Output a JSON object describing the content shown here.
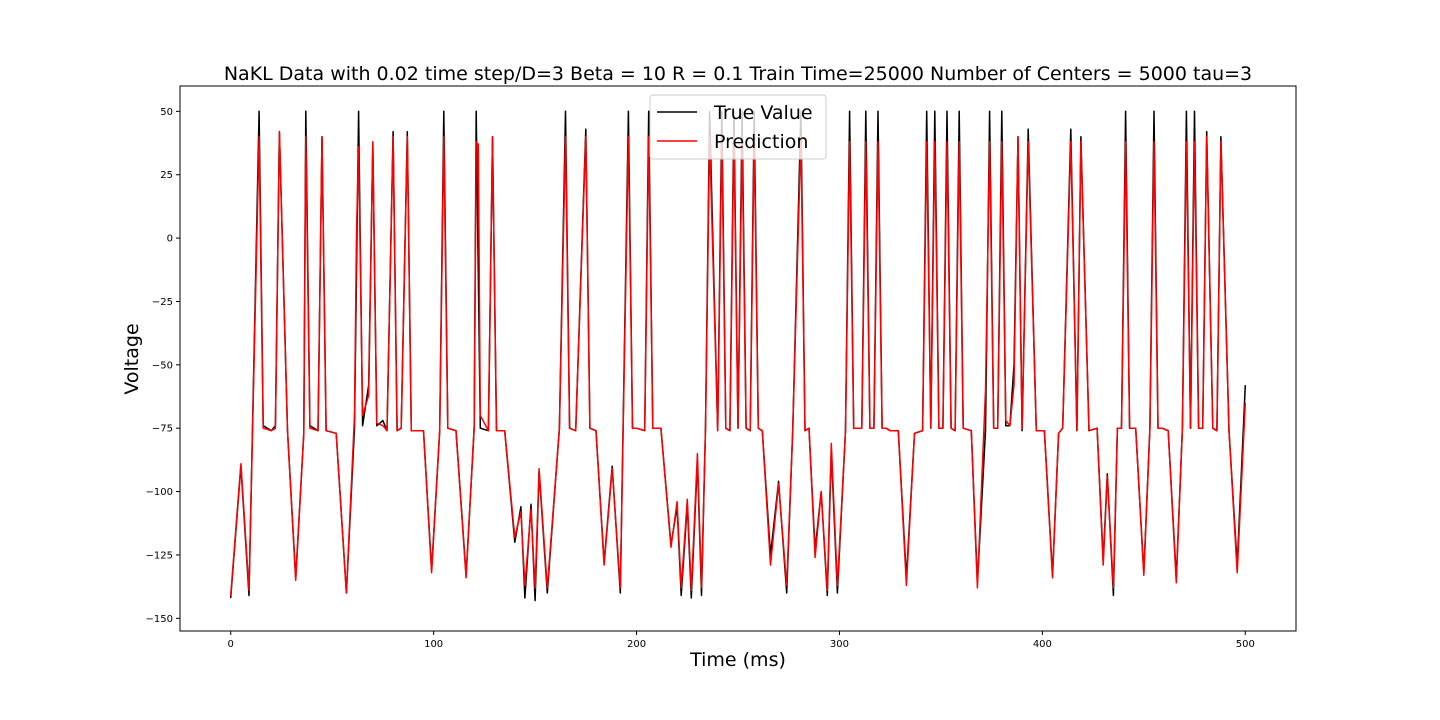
{
  "chart_data": {
    "type": "line",
    "title": "NaKL Data with 0.02 time step/D=3 Beta = 10 R = 0.1 Train Time=25000 Number of Centers = 5000 tau=3",
    "xlabel": "Time (ms)",
    "ylabel": "Voltage",
    "xlim": [
      -25,
      525
    ],
    "ylim": [
      -155,
      60
    ],
    "xticks": [
      0,
      100,
      200,
      300,
      400,
      500
    ],
    "yticks": [
      50,
      25,
      0,
      -25,
      -50,
      -75,
      -100,
      -125,
      -150
    ],
    "xtick_labels": [
      "0",
      "100",
      "200",
      "300",
      "400",
      "500"
    ],
    "ytick_labels": [
      "50",
      "25",
      "0",
      "−25",
      "−50",
      "−75",
      "−100",
      "−125",
      "−150"
    ],
    "grid": false,
    "legend_position": "top-center",
    "series": [
      {
        "name": "True Value",
        "color": "#000000",
        "x": [
          0,
          5,
          9,
          14,
          16,
          20,
          22,
          24,
          28,
          32,
          36,
          37,
          39,
          43,
          45,
          47,
          52,
          57,
          61,
          63,
          65,
          68,
          70,
          72,
          75,
          77,
          80,
          82,
          84,
          87,
          89,
          91,
          95,
          99,
          103,
          105,
          107,
          111,
          116,
          120,
          121,
          123,
          127,
          129,
          131,
          135,
          140,
          143,
          145,
          148,
          150,
          152,
          156,
          162,
          165,
          167,
          170,
          175,
          177,
          180,
          184,
          188,
          192,
          196,
          198,
          200,
          204,
          206,
          208,
          212,
          217,
          220,
          222,
          225,
          227,
          230,
          232,
          234,
          236,
          240,
          242,
          244,
          246,
          248,
          250,
          252,
          254,
          256,
          258,
          260,
          262,
          266,
          270,
          274,
          277,
          281,
          283,
          285,
          288,
          291,
          294,
          296,
          299,
          303,
          305,
          307,
          311,
          313,
          315,
          317,
          319,
          321,
          323,
          325,
          327,
          329,
          333,
          337,
          341,
          343,
          345,
          347,
          349,
          351,
          353,
          355,
          357,
          359,
          361,
          365,
          368,
          372,
          374,
          376,
          378,
          380,
          382,
          384,
          386,
          388,
          390,
          393,
          397,
          401,
          405,
          408,
          410,
          414,
          417,
          419,
          423,
          427,
          430,
          432,
          435,
          437,
          439,
          441,
          443,
          446,
          450,
          453,
          455,
          457,
          459,
          462,
          466,
          469,
          471,
          473,
          475,
          477,
          479,
          481,
          484,
          486,
          488,
          492,
          496,
          500
        ],
        "y": [
          -142,
          -90,
          -141,
          50,
          -74,
          -76,
          -74,
          42,
          -76,
          -134,
          -77,
          50,
          -74,
          -76,
          40,
          -76,
          -77,
          -140,
          -75,
          50,
          -74,
          -58,
          37,
          -74,
          -72,
          -76,
          42,
          -76,
          -75,
          42,
          -76,
          -76,
          -76,
          -131,
          -76,
          50,
          -75,
          -76,
          -133,
          -75,
          50,
          -75,
          -76,
          40,
          -76,
          -76,
          -120,
          -106,
          -142,
          -105,
          -143,
          -92,
          -140,
          -75,
          50,
          -75,
          -76,
          43,
          -75,
          -76,
          -128,
          -90,
          -140,
          50,
          -75,
          -75,
          -76,
          50,
          -75,
          -75,
          -121,
          -106,
          -141,
          -105,
          -142,
          -88,
          -141,
          -75,
          50,
          -76,
          50,
          -75,
          -76,
          50,
          -75,
          50,
          -75,
          -76,
          50,
          -75,
          -76,
          -125,
          -96,
          -140,
          -75,
          50,
          -76,
          -75,
          -123,
          -100,
          -141,
          -84,
          -140,
          -76,
          50,
          -75,
          -75,
          50,
          -75,
          -75,
          50,
          -75,
          -75,
          -76,
          -76,
          -76,
          -134,
          -77,
          -76,
          50,
          -75,
          50,
          -75,
          -75,
          50,
          -75,
          -76,
          50,
          -75,
          -76,
          -136,
          -76,
          50,
          -75,
          -75,
          50,
          -74,
          -74,
          -50,
          40,
          -76,
          43,
          -76,
          -76,
          -133,
          -77,
          -75,
          43,
          -76,
          40,
          -76,
          -75,
          -127,
          -93,
          -141,
          -75,
          -75,
          50,
          -75,
          -75,
          -132,
          -75,
          50,
          -75,
          -75,
          -76,
          -134,
          -75,
          50,
          -75,
          50,
          -75,
          -75,
          42,
          -75,
          -76,
          40,
          -76,
          -129,
          -58
        ]
      },
      {
        "name": "Prediction",
        "color": "#ff0000",
        "x": [
          0,
          5,
          9,
          14,
          16,
          20,
          22,
          24,
          28,
          32,
          36,
          37,
          39,
          43,
          45,
          47,
          52,
          57,
          61,
          62,
          63,
          65,
          68,
          70,
          72,
          75,
          77,
          80,
          82,
          84,
          87,
          89,
          91,
          95,
          99,
          103,
          105,
          107,
          111,
          116,
          120,
          121,
          122,
          123,
          127,
          129,
          131,
          135,
          140,
          143,
          145,
          148,
          150,
          152,
          156,
          162,
          165,
          167,
          170,
          175,
          177,
          180,
          184,
          188,
          192,
          196,
          198,
          200,
          204,
          206,
          208,
          212,
          217,
          220,
          222,
          225,
          227,
          230,
          232,
          234,
          236,
          240,
          242,
          244,
          246,
          248,
          250,
          252,
          254,
          256,
          258,
          260,
          262,
          266,
          270,
          274,
          277,
          281,
          283,
          285,
          288,
          291,
          294,
          296,
          299,
          303,
          305,
          307,
          311,
          313,
          315,
          317,
          319,
          321,
          323,
          325,
          327,
          329,
          333,
          337,
          341,
          343,
          345,
          347,
          349,
          351,
          353,
          355,
          357,
          359,
          361,
          365,
          368,
          372,
          374,
          376,
          378,
          380,
          382,
          384,
          386,
          388,
          390,
          393,
          397,
          401,
          405,
          408,
          410,
          414,
          417,
          419,
          423,
          427,
          430,
          432,
          435,
          437,
          439,
          441,
          443,
          446,
          450,
          453,
          455,
          457,
          459,
          462,
          466,
          469,
          471,
          473,
          475,
          477,
          479,
          481,
          484,
          486,
          488,
          492,
          496,
          500
        ],
        "y": [
          -141,
          -89,
          -139,
          40,
          -75,
          -76,
          -75,
          42,
          -76,
          -135,
          -77,
          40,
          -75,
          -76,
          40,
          -76,
          -77,
          -140,
          -70,
          2,
          36,
          -70,
          -62,
          38,
          -73,
          -74,
          -76,
          40,
          -76,
          -75,
          40,
          -76,
          -76,
          -76,
          -132,
          -76,
          40,
          -75,
          -76,
          -134,
          -74,
          38,
          37,
          -70,
          -76,
          40,
          -76,
          -76,
          -118,
          -108,
          -137,
          -107,
          -138,
          -91,
          -138,
          -75,
          40,
          -75,
          -76,
          40,
          -75,
          -76,
          -129,
          -91,
          -138,
          40,
          -75,
          -75,
          -76,
          40,
          -75,
          -75,
          -122,
          -104,
          -138,
          -103,
          -139,
          -85,
          -138,
          -75,
          40,
          -76,
          40,
          -75,
          -76,
          40,
          -75,
          38,
          -75,
          -76,
          40,
          -75,
          -76,
          -129,
          -97,
          -137,
          -75,
          40,
          -76,
          -75,
          -126,
          -100,
          -139,
          -81,
          -137,
          -76,
          38,
          -75,
          -75,
          38,
          -75,
          -75,
          38,
          -75,
          -75,
          -76,
          -76,
          -76,
          -137,
          -77,
          -76,
          38,
          -75,
          38,
          -75,
          -75,
          38,
          -75,
          -76,
          38,
          -75,
          -76,
          -138,
          -60,
          38,
          -75,
          -75,
          38,
          -72,
          -74,
          -58,
          40,
          -75,
          38,
          -76,
          -76,
          -134,
          -77,
          -75,
          38,
          -76,
          38,
          -76,
          -75,
          -129,
          -94,
          -138,
          -75,
          -75,
          38,
          -75,
          -75,
          -133,
          -75,
          38,
          -75,
          -75,
          -76,
          -136,
          -75,
          38,
          -75,
          38,
          -75,
          -75,
          40,
          -75,
          -76,
          38,
          -76,
          -132,
          -65
        ]
      }
    ]
  }
}
